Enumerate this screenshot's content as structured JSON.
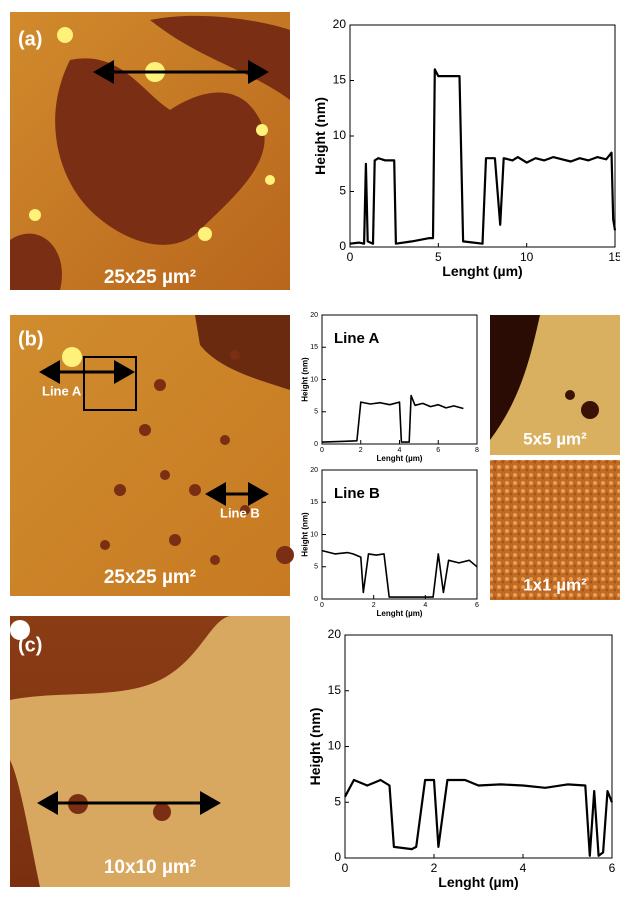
{
  "figure": {
    "panel_labels": [
      "(a)",
      "(b)",
      "(c)"
    ],
    "scale_labels": [
      "25x25 µm²",
      "25x25 µm²",
      "5x5 µm²",
      "1x1 µm²",
      "10x10 µm²"
    ],
    "line_labels": [
      "Line A",
      "Line B"
    ]
  },
  "chart_data": [
    {
      "type": "line",
      "xlabel": "Lenght (µm)",
      "ylabel": "Height (nm)",
      "color": "#000000",
      "x": [
        0,
        0.5,
        0.8,
        0.9,
        1.0,
        1.3,
        1.4,
        1.6,
        2.0,
        2.5,
        2.6,
        3.5,
        4.5,
        4.7,
        4.8,
        5.0,
        5.5,
        6.2,
        6.4,
        7.0,
        7.5,
        7.7,
        8.0,
        8.2,
        8.5,
        8.7,
        9.2,
        9.5,
        10.0,
        10.5,
        11.0,
        11.5,
        12.0,
        12.5,
        13.0,
        13.5,
        14.0,
        14.5,
        14.8,
        14.9,
        15.0
      ],
      "values": [
        0.3,
        0.4,
        0.3,
        7.5,
        0.5,
        0.3,
        7.8,
        8.0,
        7.8,
        7.8,
        0.3,
        0.5,
        0.8,
        0.8,
        16.0,
        15.4,
        15.4,
        15.4,
        0.5,
        0.4,
        0.3,
        8.0,
        8.0,
        8.0,
        2.0,
        8.0,
        7.8,
        8.1,
        7.6,
        8.0,
        7.8,
        8.1,
        7.9,
        7.7,
        8.0,
        7.8,
        8.1,
        7.9,
        8.5,
        2.5,
        1.5
      ],
      "xlim": [
        0,
        15
      ],
      "ylim": [
        0,
        20
      ],
      "xticks": [
        0,
        5,
        10,
        15
      ],
      "yticks": [
        0,
        5,
        10,
        15,
        20
      ]
    },
    {
      "type": "line",
      "xlabel": "Lenght (µm)",
      "ylabel": "Height (nm)",
      "annotation": "Line A",
      "color": "#000000",
      "x": [
        0,
        1.0,
        1.8,
        2.0,
        2.5,
        3.0,
        3.5,
        4.0,
        4.1,
        4.5,
        4.6,
        4.8,
        5.2,
        5.6,
        6.0,
        6.4,
        6.8,
        7.3
      ],
      "values": [
        0.3,
        0.4,
        0.5,
        6.5,
        6.2,
        6.4,
        6.1,
        6.5,
        0.3,
        0.3,
        7.5,
        6.0,
        6.3,
        5.8,
        6.1,
        5.6,
        5.9,
        5.5
      ],
      "xlim": [
        0,
        8
      ],
      "ylim": [
        0,
        20
      ],
      "xticks": [
        0,
        2,
        4,
        6,
        8
      ],
      "yticks": [
        0,
        5,
        10,
        15,
        20
      ]
    },
    {
      "type": "line",
      "xlabel": "Lenght (µm)",
      "ylabel": "Height (nm)",
      "annotation": "Line B",
      "color": "#000000",
      "x": [
        0,
        0.5,
        1.0,
        1.2,
        1.5,
        1.6,
        1.8,
        2.1,
        2.4,
        2.6,
        3.0,
        3.5,
        4.3,
        4.5,
        4.7,
        4.9,
        5.3,
        5.7,
        6.0
      ],
      "values": [
        7.5,
        7.0,
        7.2,
        7.0,
        6.5,
        1.0,
        7.0,
        6.8,
        7.0,
        0.3,
        0.3,
        0.3,
        0.3,
        7.0,
        1.0,
        6.0,
        5.6,
        6.0,
        5.0
      ],
      "xlim": [
        0,
        6
      ],
      "ylim": [
        0,
        20
      ],
      "xticks": [
        0,
        2,
        4,
        6
      ],
      "yticks": [
        0,
        5,
        10,
        15,
        20
      ]
    },
    {
      "type": "line",
      "xlabel": "Lenght (µm)",
      "ylabel": "Height (nm)",
      "color": "#000000",
      "x": [
        0,
        0.2,
        0.5,
        0.8,
        1.0,
        1.1,
        1.5,
        1.6,
        1.8,
        2.0,
        2.1,
        2.3,
        2.7,
        3.0,
        3.5,
        4.0,
        4.5,
        5.0,
        5.4,
        5.5,
        5.6,
        5.7,
        5.8,
        5.9,
        6.0
      ],
      "values": [
        5.5,
        7.0,
        6.5,
        7.0,
        6.5,
        1.0,
        0.8,
        1.0,
        7.0,
        7.0,
        1.0,
        7.0,
        7.0,
        6.5,
        6.6,
        6.5,
        6.3,
        6.6,
        6.5,
        0.2,
        6.0,
        0.2,
        0.5,
        6.0,
        5.0
      ],
      "xlim": [
        0,
        6
      ],
      "ylim": [
        0,
        20
      ],
      "xticks": [
        0,
        2,
        4,
        6
      ],
      "yticks": [
        0,
        5,
        10,
        15,
        20
      ]
    }
  ]
}
